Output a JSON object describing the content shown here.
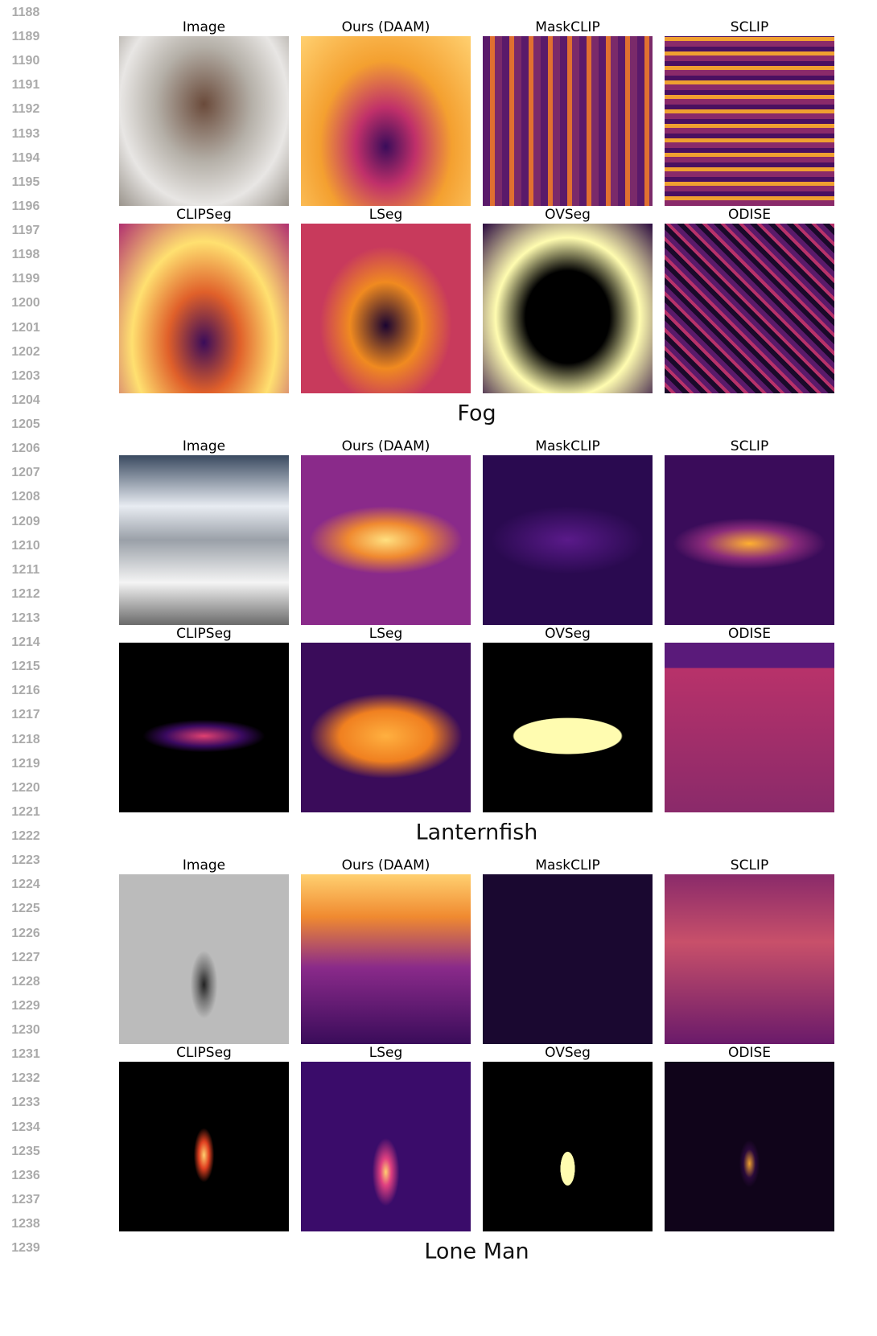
{
  "line_numbers": [
    "1188",
    "1189",
    "1190",
    "1191",
    "1192",
    "1193",
    "1194",
    "1195",
    "1196",
    "1197",
    "1198",
    "1199",
    "1200",
    "1201",
    "1202",
    "1203",
    "1204",
    "1205",
    "1206",
    "1207",
    "1208",
    "1209",
    "1210",
    "1211",
    "1212",
    "1213",
    "1214",
    "1215",
    "1216",
    "1217",
    "1218",
    "1219",
    "1220",
    "1221",
    "1222",
    "1223",
    "1224",
    "1225",
    "1226",
    "1227",
    "1228",
    "1229",
    "1230",
    "1231",
    "1232",
    "1233",
    "1234",
    "1235",
    "1236",
    "1237",
    "1238",
    "1239"
  ],
  "panels": [
    {
      "rows": [
        [
          "Image",
          "Ours (DAAM)",
          "MaskCLIP",
          "SCLIP"
        ],
        [
          "CLIPSeg",
          "LSeg",
          "OVSeg",
          "ODISE"
        ]
      ],
      "caption": "Fog"
    },
    {
      "rows": [
        [
          "Image",
          "Ours (DAAM)",
          "MaskCLIP",
          "SCLIP"
        ],
        [
          "CLIPSeg",
          "LSeg",
          "OVSeg",
          "ODISE"
        ]
      ],
      "caption": "Lanternfish"
    },
    {
      "rows": [
        [
          "Image",
          "Ours (DAAM)",
          "MaskCLIP",
          "SCLIP"
        ],
        [
          "CLIPSeg",
          "LSeg",
          "OVSeg",
          "ODISE"
        ]
      ],
      "caption": "Lone Man"
    }
  ]
}
